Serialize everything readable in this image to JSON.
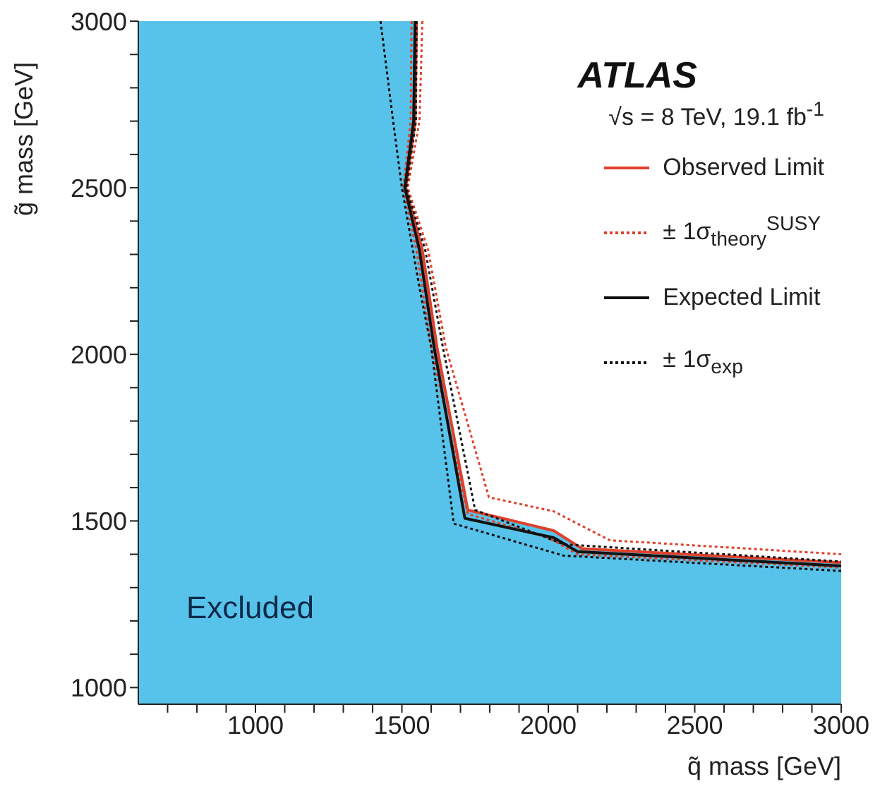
{
  "chart_data": {
    "type": "line",
    "title": "ATLAS",
    "subtitle": "√s = 8 TeV, 19.1 fb$^{-1}$",
    "xlabel": "q̃ mass [GeV]",
    "ylabel": "g̃ mass [GeV]",
    "xlim": [
      600,
      3000
    ],
    "ylim": [
      950,
      3000
    ],
    "xticks": [
      {
        "value": 700,
        "label": null
      },
      {
        "value": 800,
        "label": null
      },
      {
        "value": 900,
        "label": null
      },
      1000,
      {
        "value": 1100,
        "label": null
      },
      {
        "value": 1200,
        "label": null
      },
      {
        "value": 1300,
        "label": null
      },
      {
        "value": 1400,
        "label": null
      },
      1500,
      {
        "value": 1600,
        "label": null
      },
      {
        "value": 1700,
        "label": null
      },
      {
        "value": 1800,
        "label": null
      },
      {
        "value": 1900,
        "label": null
      },
      2000,
      {
        "value": 2100,
        "label": null
      },
      {
        "value": 2200,
        "label": null
      },
      {
        "value": 2300,
        "label": null
      },
      {
        "value": 2400,
        "label": null
      },
      2500,
      {
        "value": 2600,
        "label": null
      },
      {
        "value": 2700,
        "label": null
      },
      {
        "value": 2800,
        "label": null
      },
      {
        "value": 2900,
        "label": null
      },
      3000
    ],
    "yticks": [
      1000,
      {
        "value": 1100,
        "label": null
      },
      {
        "value": 1200,
        "label": null
      },
      {
        "value": 1300,
        "label": null
      },
      {
        "value": 1400,
        "label": null
      },
      1500,
      {
        "value": 1600,
        "label": null
      },
      {
        "value": 1700,
        "label": null
      },
      {
        "value": 1800,
        "label": null
      },
      {
        "value": 1900,
        "label": null
      },
      2000,
      {
        "value": 2100,
        "label": null
      },
      {
        "value": 2200,
        "label": null
      },
      {
        "value": 2300,
        "label": null
      },
      {
        "value": 2400,
        "label": null
      },
      2500,
      {
        "value": 2600,
        "label": null
      },
      {
        "value": 2700,
        "label": null
      },
      {
        "value": 2800,
        "label": null
      },
      {
        "value": 2900,
        "label": null
      },
      3000
    ],
    "grid": false,
    "legend": "top right",
    "marker": "none",
    "annotations": [
      "Excluded"
    ],
    "series": [
      {
        "type": "area",
        "color": "#57c3ea",
        "x": [
          600,
          1550,
          1545,
          1513,
          1570,
          1620,
          1725,
          2018,
          2115,
          3000
        ],
        "values": [
          3000,
          3000,
          2700,
          2500,
          2312,
          2021,
          1533,
          1471,
          1417,
          1375
        ]
      },
      {
        "name": "Observed Limit",
        "color": "#e0402a",
        "line_style": "solid",
        "x": [
          1550,
          1545,
          1513,
          1570,
          1620,
          1725,
          2018,
          2115,
          3000
        ],
        "values": [
          3000,
          2700,
          2500,
          2312,
          2021,
          1533,
          1471,
          1417,
          1375
        ]
      },
      {
        "name": "± 1σ$_{theory}$$^{SUSY}$",
        "color": "#e0402a",
        "line_style": "dotted",
        "x": [
          1570,
          1560,
          1520,
          1590,
          1650,
          1797,
          2018,
          2210,
          3000
        ],
        "values": [
          3000,
          2700,
          2500,
          2312,
          2021,
          1571,
          1529,
          1442,
          1400
        ]
      },
      {
        "color": "#e0402a",
        "line_style": "dotted",
        "x": [
          1533,
          1530,
          1505,
          1550,
          1600,
          1725,
          2000,
          2100,
          3000
        ],
        "values": [
          3000,
          2700,
          2500,
          2312,
          2021,
          1521,
          1450,
          1400,
          1360
        ]
      },
      {
        "name": "Expected Limit",
        "color": "#111111",
        "line_style": "solid",
        "x": [
          1545,
          1540,
          1510,
          1560,
          1610,
          1715,
          2018,
          2100,
          3000
        ],
        "values": [
          3000,
          2700,
          2500,
          2312,
          2021,
          1508,
          1450,
          1408,
          1365
        ]
      },
      {
        "name": "± 1σ$_{exp}$",
        "color": "#111111",
        "line_style": "dotted",
        "x": [
          1550,
          1548,
          1515,
          1580,
          1640,
          1750,
          2052,
          3000
        ],
        "values": [
          3000,
          2700,
          2500,
          2312,
          2021,
          1533,
          1430,
          1378
        ]
      },
      {
        "color": "#111111",
        "line_style": "dotted",
        "x": [
          1427,
          1470,
          1500,
          1560,
          1600,
          1677,
          2052,
          3000
        ],
        "values": [
          3000,
          2700,
          2500,
          2200,
          2021,
          1492,
          1396,
          1350
        ]
      }
    ]
  }
}
